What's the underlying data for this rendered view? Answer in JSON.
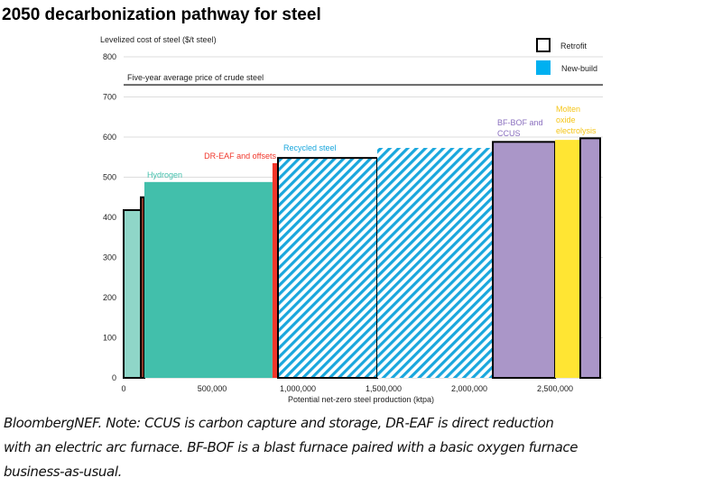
{
  "title": "2050 decarbonization pathway for steel",
  "caption": [
    "BloombergNEF. Note: CCUS is carbon capture and storage, DR-EAF is direct reduction",
    "with an electric arc furnace. BF-BOF is a blast furnace paired with a basic oxygen furnace",
    "business-as-usual."
  ],
  "chart_data": {
    "type": "bar",
    "subtype": "variable-width (marimekko) cost curve",
    "ylabel": "Levelized cost of steel ($/t steel)",
    "xlabel": "Potential net-zero steel production (ktpa)",
    "ylim": [
      0,
      800
    ],
    "xlim": [
      0,
      2800000
    ],
    "yticks": [
      0,
      100,
      200,
      300,
      400,
      500,
      600,
      700,
      800
    ],
    "xticks": [
      0,
      500000,
      1000000,
      1500000,
      2000000,
      2500000
    ],
    "xtick_labels": [
      "0",
      "500,000",
      "1,000,000",
      "1,500,000",
      "2,000,000",
      "2,500,000"
    ],
    "grid": true,
    "legend_position": "top-right",
    "legend": [
      {
        "label": "Retrofit",
        "style": "black outline"
      },
      {
        "label": "New-build",
        "color": "#00b0f0"
      }
    ],
    "reference_line": {
      "label": "Five-year average price of crude steel",
      "value": 730
    },
    "bars": [
      {
        "x_start": 0,
        "x_end": 100000,
        "value": 418,
        "color": "#8fd6c8",
        "retrofit": true,
        "hatched": false
      },
      {
        "x_start": 100000,
        "x_end": 121000,
        "value": 450,
        "color": "#8b3a2b",
        "retrofit": true,
        "hatched": false
      },
      {
        "x_start": 121000,
        "x_end": 868000,
        "value": 488,
        "color": "#42bfab",
        "retrofit": false,
        "hatched": false,
        "label": "Hydrogen",
        "label_color": "#42bfab"
      },
      {
        "x_start": 868000,
        "x_end": 900000,
        "value": 535,
        "color": "#f0362a",
        "retrofit": false,
        "hatched": false,
        "label": "DR-EAF and offsets",
        "label_color": "#f0362a"
      },
      {
        "x_start": 900000,
        "x_end": 1479000,
        "value": 548,
        "color": "#1aa7dd",
        "retrofit": true,
        "hatched": true,
        "label": "Recycled steel",
        "label_color": "#1aa7dd"
      },
      {
        "x_start": 1479000,
        "x_end": 2153000,
        "value": 573,
        "color": "#1aa7dd",
        "retrofit": false,
        "hatched": true
      },
      {
        "x_start": 2153000,
        "x_end": 2516000,
        "value": 588,
        "color": "#aa96c8",
        "retrofit": true,
        "hatched": false,
        "label": "BF-BOF and CCUS",
        "label_color": "#8a6fbf"
      },
      {
        "x_start": 2516000,
        "x_end": 2663000,
        "value": 593,
        "color": "#ffe533",
        "retrofit": false,
        "hatched": false,
        "label": "Molten oxide electrolysis",
        "label_color": "#f5c518"
      },
      {
        "x_start": 2663000,
        "x_end": 2779000,
        "value": 597,
        "color": "#aa96c8",
        "retrofit": true,
        "hatched": false
      }
    ]
  }
}
